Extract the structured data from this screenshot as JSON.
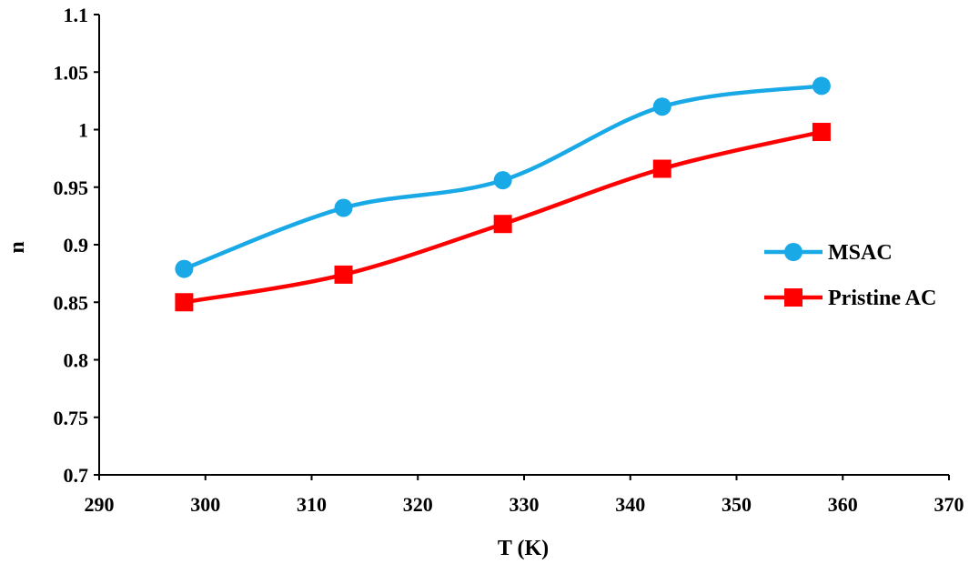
{
  "chart_data": {
    "type": "line",
    "title": "",
    "xlabel": "T (K)",
    "ylabel": "n",
    "xlim": [
      290,
      370
    ],
    "ylim": [
      0.7,
      1.1
    ],
    "xticks": [
      290,
      300,
      310,
      320,
      330,
      340,
      350,
      360,
      370
    ],
    "yticks": [
      0.7,
      0.75,
      0.8,
      0.85,
      0.9,
      0.95,
      1,
      1.05,
      1.1
    ],
    "xtick_labels": [
      "290",
      "300",
      "310",
      "320",
      "330",
      "340",
      "350",
      "360",
      "370"
    ],
    "ytick_labels": [
      "0.7",
      "0.75",
      "0.8",
      "0.85",
      "0.9",
      "0.95",
      "1",
      "1.05",
      "1.1"
    ],
    "grid": false,
    "legend_position": "right",
    "series": [
      {
        "name": "MSAC",
        "color": "#18A9E6",
        "marker": "circle",
        "x": [
          298,
          313,
          328,
          343,
          358
        ],
        "y": [
          0.879,
          0.932,
          0.956,
          1.02,
          1.038
        ]
      },
      {
        "name": "Pristine AC",
        "color": "#FF0000",
        "marker": "square",
        "x": [
          298,
          313,
          328,
          343,
          358
        ],
        "y": [
          0.85,
          0.874,
          0.918,
          0.966,
          0.998
        ]
      }
    ]
  }
}
